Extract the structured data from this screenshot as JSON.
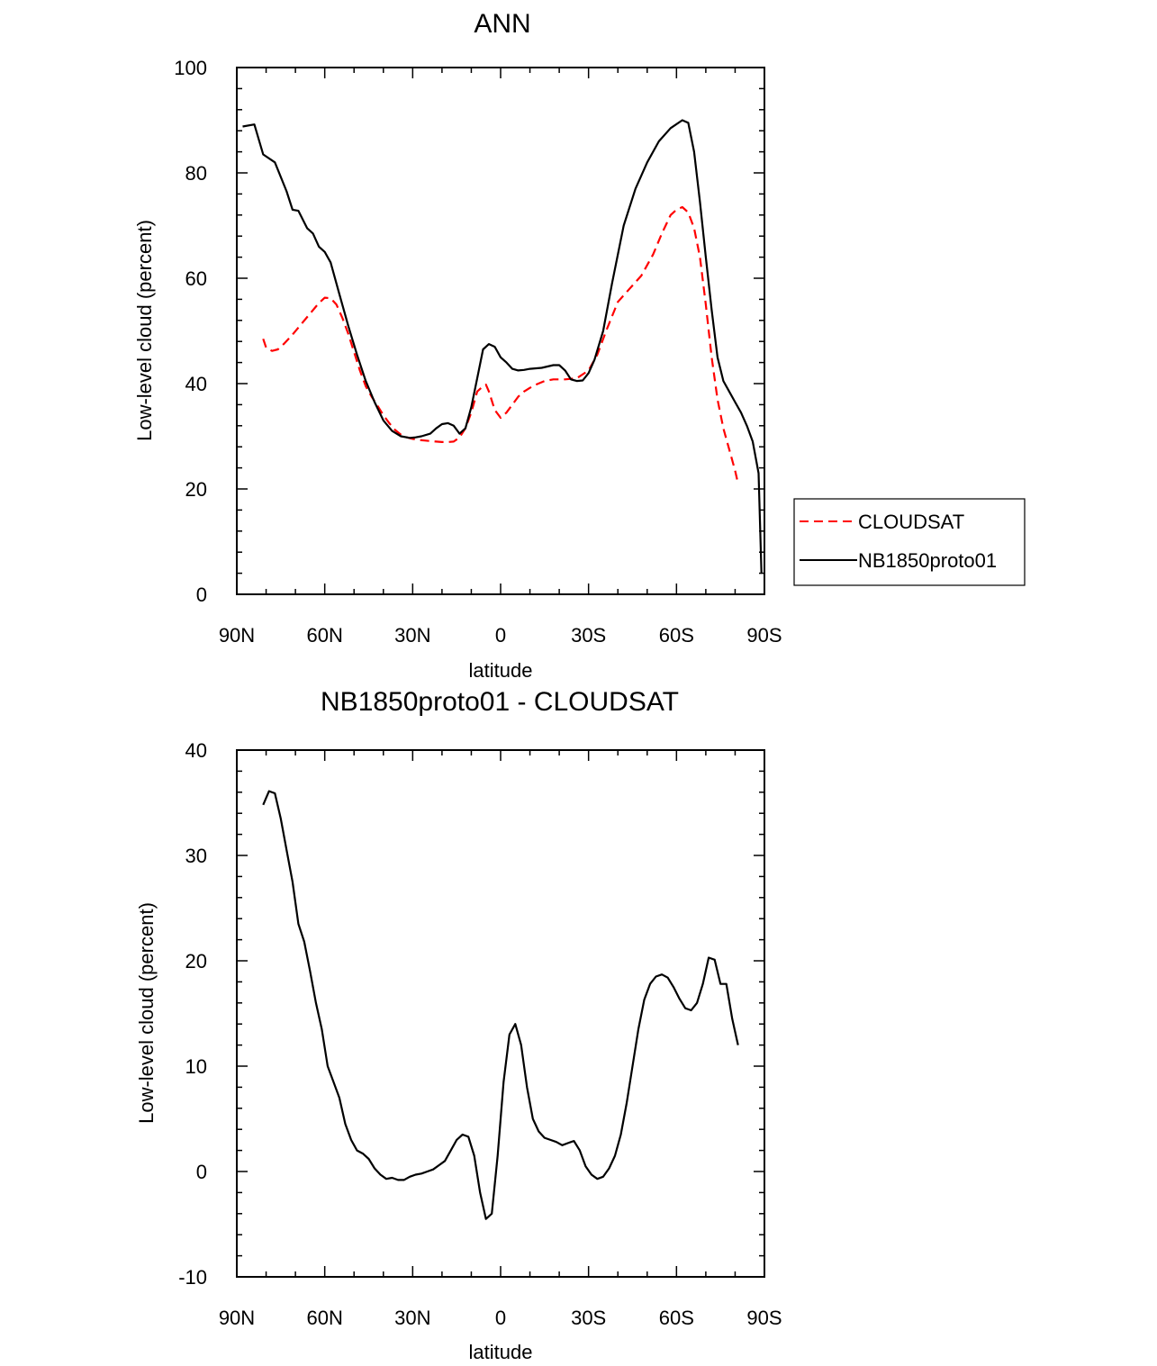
{
  "chart_data": [
    {
      "type": "line",
      "title": "ANN",
      "xlabel": "latitude",
      "ylabel": "Low-level cloud (percent)",
      "xlim": [
        90,
        -90
      ],
      "ylim": [
        0,
        100
      ],
      "xticks": [
        90,
        60,
        30,
        0,
        -30,
        -60,
        -90
      ],
      "xtick_labels": [
        "90N",
        "60N",
        "30N",
        "0",
        "30S",
        "60S",
        "90S"
      ],
      "yticks": [
        0,
        20,
        40,
        60,
        80,
        100
      ],
      "ytick_labels": [
        "0",
        "20",
        "40",
        "60",
        "80",
        "100"
      ],
      "legend_position": "right",
      "series": [
        {
          "name": "CLOUDSAT",
          "color": "#ff0000",
          "dash": "dashed",
          "x": [
            81,
            80,
            78,
            76,
            74,
            71,
            68,
            65,
            62,
            60,
            58,
            56,
            54,
            52,
            50,
            48,
            46,
            44,
            42,
            40,
            38,
            36,
            34,
            32,
            30,
            28,
            26,
            24,
            22,
            20,
            18,
            16,
            14,
            12,
            10,
            8,
            6,
            5,
            4,
            2,
            0,
            -2,
            -4,
            -6,
            -8,
            -10,
            -12,
            -15,
            -18,
            -22,
            -26,
            -30,
            -33,
            -36,
            -40,
            -44,
            -48,
            -52,
            -55,
            -58,
            -60,
            -62,
            -64,
            -66,
            -68,
            -70,
            -72,
            -74,
            -76,
            -78,
            -80,
            -81
          ],
          "y": [
            48.5,
            46.8,
            46.2,
            46.5,
            47.5,
            49.3,
            51.3,
            53.3,
            55.3,
            56.3,
            56.2,
            55.0,
            52.5,
            49.5,
            46.0,
            42.5,
            39.5,
            37.5,
            35.8,
            34.0,
            32.5,
            31.2,
            30.3,
            29.8,
            29.5,
            29.3,
            29.2,
            29.1,
            29.0,
            28.9,
            28.9,
            29.0,
            29.8,
            31.5,
            34.5,
            38.5,
            39.5,
            39.8,
            38.5,
            35.0,
            33.5,
            34.5,
            36.0,
            37.5,
            38.5,
            39.2,
            39.8,
            40.5,
            40.8,
            40.8,
            41.0,
            42.5,
            45.5,
            50.0,
            55.5,
            58.0,
            60.5,
            64.5,
            68.5,
            72.0,
            73.0,
            73.5,
            72.5,
            69.5,
            64.0,
            55.0,
            45.0,
            37.0,
            31.5,
            27.5,
            23.5,
            21.0
          ]
        },
        {
          "name": "NB1850proto01",
          "color": "#000000",
          "dash": "solid",
          "x": [
            88,
            84,
            81,
            77,
            73,
            71,
            69,
            66,
            64,
            62,
            60,
            58,
            55,
            52,
            49,
            46,
            43,
            40,
            37,
            34,
            31,
            29,
            27,
            24,
            22,
            20,
            18,
            16,
            14,
            12,
            10,
            8,
            6,
            4,
            2,
            0,
            -2,
            -4,
            -6,
            -8,
            -10,
            -14,
            -18,
            -20,
            -22,
            -24,
            -26,
            -28,
            -30,
            -32,
            -35,
            -38,
            -42,
            -46,
            -50,
            -54,
            -58,
            -62,
            -64,
            -66,
            -68,
            -70,
            -72,
            -74,
            -76,
            -78,
            -80,
            -82,
            -84,
            -86,
            -88,
            -89
          ],
          "y": [
            88.8,
            89.2,
            83.5,
            82.0,
            76.5,
            73.0,
            72.8,
            69.5,
            68.5,
            66.0,
            65.0,
            63.0,
            57.0,
            51.0,
            45.5,
            40.5,
            36.5,
            33.0,
            31.0,
            30.0,
            29.7,
            29.8,
            30.0,
            30.5,
            31.5,
            32.3,
            32.5,
            32.0,
            30.5,
            31.5,
            35.5,
            41.0,
            46.5,
            47.5,
            47.0,
            45.0,
            44.0,
            42.8,
            42.5,
            42.6,
            42.8,
            43.0,
            43.5,
            43.5,
            42.5,
            40.8,
            40.5,
            40.6,
            42.0,
            44.5,
            50.0,
            59.0,
            70.0,
            77.0,
            82.0,
            86.0,
            88.5,
            90.0,
            89.5,
            84.0,
            74.5,
            64.0,
            54.0,
            45.0,
            40.5,
            38.5,
            36.5,
            34.5,
            32.0,
            29.0,
            23.0,
            4.0
          ]
        }
      ]
    },
    {
      "type": "line",
      "title": "NB1850proto01 - CLOUDSAT",
      "xlabel": "latitude",
      "ylabel": "Low-level cloud (percent)",
      "xlim": [
        90,
        -90
      ],
      "ylim": [
        -10,
        40
      ],
      "xticks": [
        90,
        60,
        30,
        0,
        -30,
        -60,
        -90
      ],
      "xtick_labels": [
        "90N",
        "60N",
        "30N",
        "0",
        "30S",
        "60S",
        "90S"
      ],
      "yticks": [
        -10,
        0,
        10,
        20,
        30,
        40
      ],
      "ytick_labels": [
        "-10",
        "0",
        "10",
        "20",
        "30",
        "40"
      ],
      "series": [
        {
          "name": "NB1850proto01 - CLOUDSAT",
          "color": "#000000",
          "dash": "solid",
          "x": [
            81,
            79,
            77,
            75,
            73,
            71,
            69,
            67,
            65,
            63,
            61,
            59,
            57,
            55,
            53,
            51,
            49,
            47,
            45,
            43,
            41,
            39,
            37,
            35,
            33,
            31,
            29,
            27,
            25,
            23,
            21,
            19,
            17,
            15,
            13,
            11,
            9,
            7,
            5,
            3,
            1,
            -1,
            -3,
            -5,
            -7,
            -9,
            -11,
            -13,
            -15,
            -17,
            -19,
            -21,
            -23,
            -25,
            -27,
            -29,
            -31,
            -33,
            -35,
            -37,
            -39,
            -41,
            -43,
            -45,
            -47,
            -49,
            -51,
            -53,
            -55,
            -57,
            -59,
            -61,
            -63,
            -65,
            -67,
            -69,
            -71,
            -73,
            -75,
            -77,
            -79,
            -81
          ],
          "y": [
            34.8,
            36.1,
            35.9,
            33.5,
            30.5,
            27.5,
            23.5,
            21.8,
            19.0,
            16.0,
            13.5,
            10.0,
            8.5,
            7.0,
            4.5,
            3.0,
            2.0,
            1.7,
            1.2,
            0.3,
            -0.3,
            -0.7,
            -0.6,
            -0.8,
            -0.8,
            -0.5,
            -0.3,
            -0.2,
            0.0,
            0.2,
            0.6,
            1.0,
            2.0,
            3.0,
            3.5,
            3.3,
            1.5,
            -2.0,
            -4.5,
            -4.0,
            1.5,
            8.5,
            13.0,
            14.0,
            12.0,
            8.0,
            5.0,
            3.8,
            3.2,
            3.0,
            2.8,
            2.5,
            2.7,
            2.9,
            2.0,
            0.5,
            -0.3,
            -0.7,
            -0.5,
            0.3,
            1.5,
            3.5,
            6.5,
            10.0,
            13.5,
            16.3,
            17.8,
            18.5,
            18.7,
            18.4,
            17.5,
            16.4,
            15.5,
            15.3,
            16.0,
            17.8,
            20.3,
            20.1,
            17.8,
            17.8,
            14.5,
            12.0
          ]
        }
      ]
    }
  ]
}
